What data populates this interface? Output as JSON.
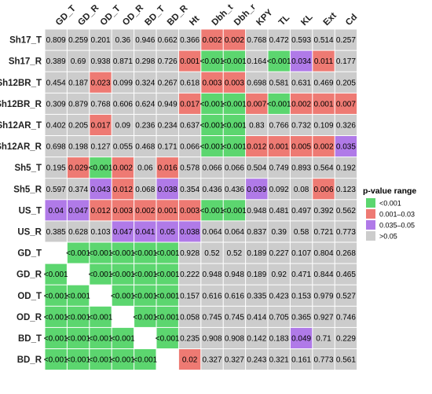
{
  "chart_data": {
    "type": "heatmap",
    "title": "",
    "columns": [
      "GD_T",
      "GD_R",
      "OD_T",
      "OD_R",
      "BD_T",
      "BD_R",
      "Ht",
      "Dbh_t",
      "Dbh_r",
      "KPY",
      "TL",
      "KL",
      "Ext",
      "Cd"
    ],
    "rows": [
      {
        "label": "Sh17_T",
        "values": [
          "0.809",
          "0.259",
          "0.201",
          "0.36",
          "0.946",
          "0.662",
          "0.366",
          "0.002",
          "0.002",
          "0.768",
          "0.472",
          "0.593",
          "0.514",
          "0.257"
        ]
      },
      {
        "label": "Sh17_R",
        "values": [
          "0.389",
          "0.69",
          "0.938",
          "0.871",
          "0.298",
          "0.726",
          "0.001",
          "<0.001",
          "<0.001",
          "0.164",
          "<0.001",
          "0.034",
          "0.011",
          "0.177"
        ]
      },
      {
        "label": "Sh12BR_T",
        "values": [
          "0.454",
          "0.187",
          "0.023",
          "0.099",
          "0.324",
          "0.267",
          "0.618",
          "0.003",
          "0.003",
          "0.698",
          "0.581",
          "0.631",
          "0.469",
          "0.205"
        ]
      },
      {
        "label": "Sh12BR_R",
        "values": [
          "0.309",
          "0.879",
          "0.768",
          "0.606",
          "0.624",
          "0.949",
          "0.017",
          "<0.001",
          "<0.001",
          "0.007",
          "<0.001",
          "0.002",
          "0.001",
          "0.007"
        ]
      },
      {
        "label": "Sh12AR_T",
        "values": [
          "0.402",
          "0.205",
          "0.017",
          "0.09",
          "0.236",
          "0.234",
          "0.637",
          "<0.001",
          "<0.001",
          "0.83",
          "0.766",
          "0.732",
          "0.109",
          "0.326"
        ]
      },
      {
        "label": "Sh12AR_R",
        "values": [
          "0.698",
          "0.198",
          "0.127",
          "0.055",
          "0.468",
          "0.171",
          "0.066",
          "<0.001",
          "<0.001",
          "0.012",
          "0.001",
          "0.005",
          "0.002",
          "0.035"
        ]
      },
      {
        "label": "Sh5_T",
        "values": [
          "0.195",
          "0.029",
          "<0.001",
          "0.002",
          "0.06",
          "0.016",
          "0.578",
          "0.066",
          "0.066",
          "0.504",
          "0.749",
          "0.893",
          "0.564",
          "0.192"
        ]
      },
      {
        "label": "Sh5_R",
        "values": [
          "0.597",
          "0.374",
          "0.043",
          "0.012",
          "0.068",
          "0.038",
          "0.354",
          "0.436",
          "0.436",
          "0.039",
          "0.092",
          "0.08",
          "0.006",
          "0.123"
        ]
      },
      {
        "label": "US_T",
        "values": [
          "0.04",
          "0.047",
          "0.012",
          "0.003",
          "0.002",
          "0.001",
          "0.003",
          "<0.001",
          "<0.001",
          "0.948",
          "0.481",
          "0.497",
          "0.392",
          "0.562"
        ]
      },
      {
        "label": "US_R",
        "values": [
          "0.385",
          "0.628",
          "0.103",
          "0.047",
          "0.041",
          "0.05",
          "0.038",
          "0.064",
          "0.064",
          "0.837",
          "0.39",
          "0.58",
          "0.721",
          "0.773"
        ]
      },
      {
        "label": "GD_T",
        "values": [
          "",
          "<0.001",
          "<0.001",
          "<0.001",
          "<0.001",
          "<0.001",
          "0.928",
          "0.52",
          "0.52",
          "0.189",
          "0.227",
          "0.107",
          "0.804",
          "0.268"
        ]
      },
      {
        "label": "GD_R",
        "values": [
          "<0.001",
          "",
          "<0.001",
          "<0.001",
          "<0.001",
          "<0.001",
          "0.222",
          "0.948",
          "0.948",
          "0.189",
          "0.92",
          "0.471",
          "0.844",
          "0.465"
        ]
      },
      {
        "label": "OD_T",
        "values": [
          "<0.001",
          "<0.001",
          "",
          "<0.001",
          "<0.001",
          "<0.001",
          "0.157",
          "0.616",
          "0.616",
          "0.335",
          "0.423",
          "0.153",
          "0.979",
          "0.527"
        ]
      },
      {
        "label": "OD_R",
        "values": [
          "<0.001",
          "<0.001",
          "<0.001",
          "",
          "<0.001",
          "<0.001",
          "0.058",
          "0.745",
          "0.745",
          "0.414",
          "0.705",
          "0.365",
          "0.927",
          "0.746"
        ]
      },
      {
        "label": "BD_T",
        "values": [
          "<0.001",
          "<0.001",
          "<0.001",
          "<0.001",
          "",
          "<0.001",
          "0.235",
          "0.908",
          "0.908",
          "0.142",
          "0.183",
          "0.049",
          "0.71",
          "0.229"
        ]
      },
      {
        "label": "BD_R",
        "values": [
          "<0.001",
          "<0.001",
          "<0.001",
          "<0.001",
          "<0.001",
          "",
          "0.02",
          "0.327",
          "0.327",
          "0.243",
          "0.321",
          "0.161",
          "0.773",
          "0.561"
        ]
      }
    ],
    "legend": {
      "title": "p-value range",
      "position": "right",
      "entries": [
        {
          "label": "<0.001",
          "color": "#5cd66f"
        },
        {
          "label": "0.001–0.03",
          "color": "#ee7a73"
        },
        {
          "label": "0.035–0.05",
          "color": "#b07ae8"
        },
        {
          "label": ">0.05",
          "color": "#cccccc"
        }
      ]
    },
    "colors": {
      "green": "#5cd66f",
      "red": "#ee7a73",
      "purple": "#b07ae8",
      "gray": "#cccccc",
      "diagonal": "#ffffff"
    }
  }
}
